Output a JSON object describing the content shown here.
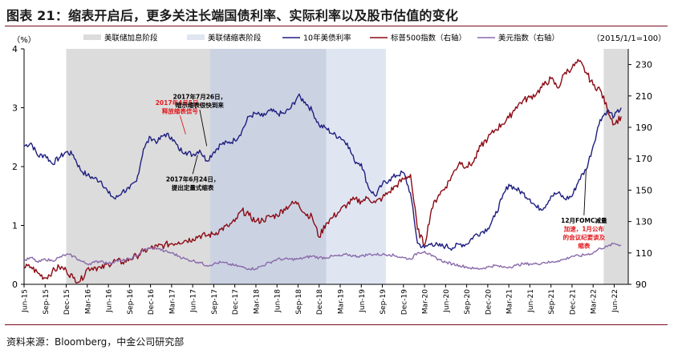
{
  "title": "图表 21：缩表开启后，更多关注长端国债利率、实际利率以及股市估值的变化",
  "source": "资料来源：Bloomberg，中金公司研究部",
  "colors": {
    "treasury": "#1f1f80",
    "sp500": "#8b0a14",
    "dxy": "#8a6aaa",
    "shade_hike": "#dcdcdc",
    "shade_qt": "#cbd3e3",
    "shade_qt_light": "#dfe6f2",
    "annotation_red": "#e0191d",
    "text": "#000000"
  },
  "chart_data": {
    "type": "line",
    "title": "",
    "left_axis_unit": "（%）",
    "right_axis_note": "（2015/1/1=100）",
    "ylim": [
      0,
      4
    ],
    "yticks": [
      "0",
      "1",
      "2",
      "3",
      "4"
    ],
    "y2lim": [
      90,
      240
    ],
    "y2ticks": [
      "90",
      "110",
      "130",
      "150",
      "170",
      "190",
      "210",
      "230"
    ],
    "x_range": [
      0,
      86
    ],
    "x_ticks": [
      {
        "label": "Jun-15",
        "t": 0
      },
      {
        "label": "Sep-15",
        "t": 3
      },
      {
        "label": "Dec-15",
        "t": 6
      },
      {
        "label": "Mar-16",
        "t": 9
      },
      {
        "label": "Jun-16",
        "t": 12
      },
      {
        "label": "Sep-16",
        "t": 15
      },
      {
        "label": "Dec-16",
        "t": 18
      },
      {
        "label": "Mar-17",
        "t": 21
      },
      {
        "label": "Jun-17",
        "t": 24
      },
      {
        "label": "Sep-17",
        "t": 27
      },
      {
        "label": "Dec-17",
        "t": 30
      },
      {
        "label": "Mar-18",
        "t": 33
      },
      {
        "label": "Jun-18",
        "t": 36
      },
      {
        "label": "Sep-18",
        "t": 39
      },
      {
        "label": "Dec-18",
        "t": 42
      },
      {
        "label": "Mar-19",
        "t": 45
      },
      {
        "label": "Jun-19",
        "t": 48
      },
      {
        "label": "Sep-19",
        "t": 51
      },
      {
        "label": "Dec-19",
        "t": 54
      },
      {
        "label": "Mar-20",
        "t": 57
      },
      {
        "label": "Jun-20",
        "t": 60
      },
      {
        "label": "Sep-20",
        "t": 63
      },
      {
        "label": "Dec-20",
        "t": 66
      },
      {
        "label": "Mar-21",
        "t": 69
      },
      {
        "label": "Jun-21",
        "t": 72
      },
      {
        "label": "Sep-21",
        "t": 75
      },
      {
        "label": "Dec-21",
        "t": 78
      },
      {
        "label": "Mar-22",
        "t": 81
      },
      {
        "label": "Jun-22",
        "t": 84
      }
    ],
    "shaded_periods": [
      {
        "name": "美联储加息阶段",
        "start": 6,
        "end": 26.5,
        "style": "hike"
      },
      {
        "name": "美联储缩表阶段",
        "start": 26.5,
        "end": 43,
        "style": "qt"
      },
      {
        "name": "美联储缩表阶段",
        "start": 43,
        "end": 51.5,
        "style": "qt_light"
      },
      {
        "name": "美联储加息阶段",
        "start": 82.5,
        "end": 86,
        "style": "hike"
      }
    ],
    "legend": [
      {
        "label": "美联储加息阶段",
        "kind": "box",
        "style": "hike"
      },
      {
        "label": "美联储缩表阶段",
        "kind": "box",
        "style": "qt_light"
      },
      {
        "label": "10年美债利率",
        "kind": "line",
        "series": "treasury"
      },
      {
        "label": "标普500指数（右轴）",
        "kind": "line",
        "series": "sp500"
      },
      {
        "label": "美元指数（右轴）",
        "kind": "line",
        "series": "dxy"
      }
    ],
    "series": [
      {
        "name": "10年美债利率",
        "key": "treasury",
        "axis": "left",
        "points": [
          [
            0,
            2.35
          ],
          [
            1,
            2.4
          ],
          [
            2,
            2.18
          ],
          [
            3,
            2.2
          ],
          [
            4,
            2.05
          ],
          [
            5,
            2.15
          ],
          [
            6,
            2.25
          ],
          [
            7,
            2.2
          ],
          [
            8,
            1.95
          ],
          [
            9,
            1.85
          ],
          [
            10,
            1.8
          ],
          [
            11,
            1.75
          ],
          [
            12,
            1.55
          ],
          [
            13,
            1.45
          ],
          [
            14,
            1.58
          ],
          [
            15,
            1.62
          ],
          [
            16,
            1.75
          ],
          [
            17,
            2.3
          ],
          [
            18,
            2.5
          ],
          [
            19,
            2.42
          ],
          [
            20,
            2.55
          ],
          [
            21,
            2.5
          ],
          [
            22,
            2.3
          ],
          [
            23,
            2.25
          ],
          [
            24,
            2.2
          ],
          [
            25,
            2.28
          ],
          [
            26,
            2.1
          ],
          [
            27,
            2.25
          ],
          [
            28,
            2.38
          ],
          [
            29,
            2.4
          ],
          [
            30,
            2.45
          ],
          [
            31,
            2.6
          ],
          [
            32,
            2.85
          ],
          [
            33,
            2.9
          ],
          [
            34,
            2.85
          ],
          [
            35,
            2.95
          ],
          [
            36,
            2.9
          ],
          [
            37,
            2.9
          ],
          [
            38,
            3.0
          ],
          [
            39,
            3.2
          ],
          [
            40,
            3.1
          ],
          [
            41,
            2.95
          ],
          [
            42,
            2.7
          ],
          [
            43,
            2.65
          ],
          [
            44,
            2.55
          ],
          [
            45,
            2.5
          ],
          [
            46,
            2.4
          ],
          [
            47,
            2.1
          ],
          [
            48,
            2.05
          ],
          [
            49,
            1.65
          ],
          [
            50,
            1.5
          ],
          [
            51,
            1.7
          ],
          [
            52,
            1.78
          ],
          [
            53,
            1.85
          ],
          [
            54,
            1.9
          ],
          [
            55,
            1.55
          ],
          [
            56,
            0.7
          ],
          [
            57,
            0.62
          ],
          [
            58,
            0.7
          ],
          [
            59,
            0.65
          ],
          [
            60,
            0.65
          ],
          [
            61,
            0.62
          ],
          [
            62,
            0.68
          ],
          [
            63,
            0.68
          ],
          [
            64,
            0.82
          ],
          [
            65,
            0.88
          ],
          [
            66,
            0.95
          ],
          [
            67,
            1.15
          ],
          [
            68,
            1.45
          ],
          [
            69,
            1.7
          ],
          [
            70,
            1.62
          ],
          [
            71,
            1.55
          ],
          [
            72,
            1.45
          ],
          [
            73,
            1.3
          ],
          [
            74,
            1.3
          ],
          [
            75,
            1.5
          ],
          [
            76,
            1.55
          ],
          [
            77,
            1.45
          ],
          [
            78,
            1.5
          ],
          [
            79,
            1.78
          ],
          [
            80,
            1.95
          ],
          [
            81,
            2.35
          ],
          [
            82,
            2.8
          ],
          [
            83,
            2.95
          ],
          [
            84,
            2.85
          ],
          [
            85,
            3.0
          ]
        ]
      },
      {
        "name": "标普500指数（右轴）",
        "key": "sp500",
        "axis": "right",
        "points": [
          [
            0,
            101
          ],
          [
            1,
            101
          ],
          [
            2,
            97
          ],
          [
            3,
            94
          ],
          [
            4,
            98
          ],
          [
            5,
            101
          ],
          [
            6,
            99
          ],
          [
            7,
            94
          ],
          [
            8,
            92
          ],
          [
            9,
            100
          ],
          [
            10,
            101
          ],
          [
            11,
            100
          ],
          [
            12,
            103
          ],
          [
            13,
            105
          ],
          [
            14,
            104
          ],
          [
            15,
            106
          ],
          [
            16,
            108
          ],
          [
            17,
            111
          ],
          [
            18,
            113
          ],
          [
            19,
            114
          ],
          [
            20,
            115
          ],
          [
            21,
            116
          ],
          [
            22,
            117
          ],
          [
            23,
            118
          ],
          [
            24,
            119
          ],
          [
            25,
            121
          ],
          [
            26,
            121
          ],
          [
            27,
            122
          ],
          [
            28,
            125
          ],
          [
            29,
            127
          ],
          [
            30,
            130
          ],
          [
            31,
            137
          ],
          [
            32,
            134
          ],
          [
            33,
            130
          ],
          [
            34,
            131
          ],
          [
            35,
            133
          ],
          [
            36,
            134
          ],
          [
            37,
            138
          ],
          [
            38,
            141
          ],
          [
            39,
            142
          ],
          [
            40,
            135
          ],
          [
            41,
            133
          ],
          [
            42,
            120
          ],
          [
            43,
            129
          ],
          [
            44,
            133
          ],
          [
            45,
            137
          ],
          [
            46,
            141
          ],
          [
            47,
            144
          ],
          [
            48,
            143
          ],
          [
            49,
            145
          ],
          [
            50,
            142
          ],
          [
            51,
            145
          ],
          [
            52,
            149
          ],
          [
            53,
            153
          ],
          [
            54,
            157
          ],
          [
            55,
            160
          ],
          [
            56,
            125
          ],
          [
            57,
            115
          ],
          [
            58,
            138
          ],
          [
            59,
            147
          ],
          [
            60,
            152
          ],
          [
            61,
            160
          ],
          [
            62,
            168
          ],
          [
            63,
            165
          ],
          [
            64,
            168
          ],
          [
            65,
            178
          ],
          [
            66,
            183
          ],
          [
            67,
            188
          ],
          [
            68,
            192
          ],
          [
            69,
            196
          ],
          [
            70,
            203
          ],
          [
            71,
            207
          ],
          [
            72,
            209
          ],
          [
            73,
            212
          ],
          [
            74,
            217
          ],
          [
            75,
            221
          ],
          [
            76,
            215
          ],
          [
            77,
            225
          ],
          [
            78,
            228
          ],
          [
            79,
            232
          ],
          [
            80,
            225
          ],
          [
            81,
            217
          ],
          [
            82,
            214
          ],
          [
            83,
            202
          ],
          [
            84,
            192
          ],
          [
            85,
            197
          ]
        ]
      },
      {
        "name": "美元指数（右轴）",
        "key": "dxy",
        "axis": "right",
        "points": [
          [
            0,
            105
          ],
          [
            1,
            107
          ],
          [
            2,
            104
          ],
          [
            3,
            106
          ],
          [
            4,
            105
          ],
          [
            5,
            107
          ],
          [
            6,
            109
          ],
          [
            7,
            108
          ],
          [
            8,
            105
          ],
          [
            9,
            103
          ],
          [
            10,
            104
          ],
          [
            11,
            105
          ],
          [
            12,
            103
          ],
          [
            13,
            105
          ],
          [
            14,
            105
          ],
          [
            15,
            106
          ],
          [
            16,
            108
          ],
          [
            17,
            112
          ],
          [
            18,
            113
          ],
          [
            19,
            113
          ],
          [
            20,
            111
          ],
          [
            21,
            110
          ],
          [
            22,
            108
          ],
          [
            23,
            106
          ],
          [
            24,
            105
          ],
          [
            25,
            104
          ],
          [
            26,
            102
          ],
          [
            27,
            103
          ],
          [
            28,
            104
          ],
          [
            29,
            103
          ],
          [
            30,
            102
          ],
          [
            31,
            101
          ],
          [
            32,
            100
          ],
          [
            33,
            100
          ],
          [
            34,
            102
          ],
          [
            35,
            104
          ],
          [
            36,
            106
          ],
          [
            37,
            106
          ],
          [
            38,
            106
          ],
          [
            39,
            106
          ],
          [
            40,
            107
          ],
          [
            41,
            108
          ],
          [
            42,
            107
          ],
          [
            43,
            107
          ],
          [
            44,
            108
          ],
          [
            45,
            108
          ],
          [
            46,
            109
          ],
          [
            47,
            108
          ],
          [
            48,
            108
          ],
          [
            49,
            109
          ],
          [
            50,
            109
          ],
          [
            51,
            109
          ],
          [
            52,
            109
          ],
          [
            53,
            108
          ],
          [
            54,
            107
          ],
          [
            55,
            106
          ],
          [
            56,
            110
          ],
          [
            57,
            111
          ],
          [
            58,
            108
          ],
          [
            59,
            106
          ],
          [
            60,
            104
          ],
          [
            61,
            103
          ],
          [
            62,
            102
          ],
          [
            63,
            101
          ],
          [
            64,
            100
          ],
          [
            65,
            100
          ],
          [
            66,
            101
          ],
          [
            67,
            102
          ],
          [
            68,
            101
          ],
          [
            69,
            101
          ],
          [
            70,
            102
          ],
          [
            71,
            103
          ],
          [
            72,
            103
          ],
          [
            73,
            103
          ],
          [
            74,
            104
          ],
          [
            75,
            104
          ],
          [
            76,
            105
          ],
          [
            77,
            106
          ],
          [
            78,
            108
          ],
          [
            79,
            108
          ],
          [
            80,
            109
          ],
          [
            81,
            110
          ],
          [
            82,
            113
          ],
          [
            83,
            114
          ],
          [
            84,
            116
          ],
          [
            85,
            115
          ]
        ]
      }
    ],
    "annotations": [
      {
        "lines": [
          "2017年4月5日，",
          "释放缩表信号"
        ],
        "color": "red",
        "tx": 22.2,
        "y": 3.05,
        "ax": 23,
        "ay": 2.55
      },
      {
        "lines": [
          "2017年7月26日，",
          "暗示缩表很快到来"
        ],
        "color": "black",
        "tx": 25,
        "y": 3.15,
        "ax": 26,
        "ay": 2.35
      },
      {
        "lines": [
          "2017年6月24日，",
          "提出定量式缩表"
        ],
        "color": "black",
        "tx": 24,
        "y": 1.75,
        "ax": 24.7,
        "ay": 2.2
      },
      {
        "lines": [
          "12月FOMC减量",
          "加速，1月公布",
          "的会议纪要谈及",
          "缩表"
        ],
        "color": "mixed",
        "tx": 79.7,
        "y": 1.05,
        "ax": 80,
        "ay": 1.95
      }
    ]
  }
}
